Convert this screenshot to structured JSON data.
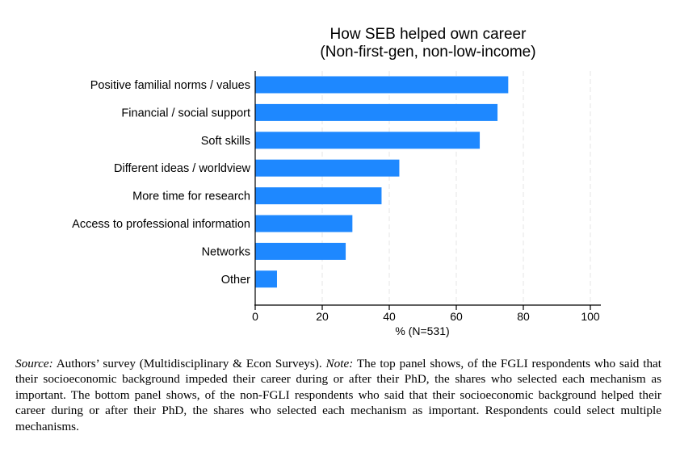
{
  "chart_data": {
    "type": "bar",
    "orientation": "horizontal",
    "title": "How SEB helped own career",
    "subtitle": "(Non-first-gen, non-low-income)",
    "categories": [
      "Positive familial norms / values",
      "Financial / social support",
      "Soft skills",
      "Different ideas / worldview",
      "More time for research",
      "Access to professional information",
      "Networks",
      "Other"
    ],
    "values": [
      75.5,
      72.3,
      67.0,
      43.0,
      37.7,
      29.0,
      27.0,
      6.5
    ],
    "xlabel": "% (N=531)",
    "xlim": [
      0,
      100
    ],
    "xticks": [
      0,
      20,
      40,
      60,
      80,
      100
    ],
    "grid": "vertical dashed",
    "bar_color": "#1e88ff"
  },
  "caption": {
    "source_label": "Source:",
    "source_text": "Authors’ survey (Multidisciplinary & Econ Surveys).",
    "note_label": "Note:",
    "note_text": "The top panel shows, of the FGLI respondents who said that their socioeconomic background impeded their career during or after their PhD, the shares who selected each mechanism as important. The bottom panel shows, of the non-FGLI respondents who said that their socioeconomic background helped their career during or after their PhD, the shares who selected each mechanism as important. Respondents could select multiple mechanisms."
  }
}
